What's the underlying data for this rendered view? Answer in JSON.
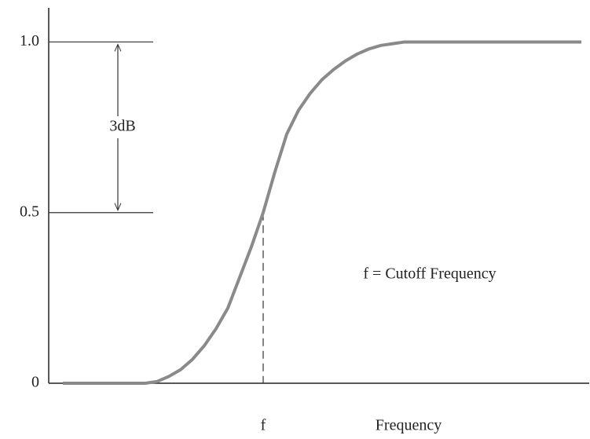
{
  "chart_data": {
    "type": "line",
    "annotations": [
      "3dB",
      "f = Cutoff Frequency"
    ],
    "x_label": "Frequency",
    "categories": [
      null,
      null,
      null,
      null,
      null,
      null,
      null,
      null,
      null,
      null,
      null,
      null,
      null,
      null,
      null,
      null,
      null,
      "f",
      null,
      null,
      null,
      null,
      null,
      null,
      null,
      null,
      null,
      null,
      null,
      null,
      null,
      null,
      null,
      null,
      null,
      null,
      null,
      null,
      null,
      null,
      null,
      null,
      null,
      null,
      null
    ],
    "values": [
      0,
      0,
      0,
      0,
      0,
      0,
      0,
      0,
      0.005,
      0.02,
      0.04,
      0.07,
      0.11,
      0.16,
      0.22,
      0.31,
      0.4,
      0.5,
      0.62,
      0.73,
      0.8,
      0.85,
      0.89,
      0.92,
      0.945,
      0.965,
      0.98,
      0.99,
      0.995,
      1,
      1,
      1,
      1,
      1,
      1,
      1,
      1,
      1,
      1,
      1,
      1,
      1,
      1,
      1,
      1
    ],
    "color": "#8a8a8a",
    "ylim": [
      0,
      1.1
    ],
    "yticks": [
      0,
      0.5,
      {
        "value": 1,
        "label": "1.0"
      }
    ]
  }
}
